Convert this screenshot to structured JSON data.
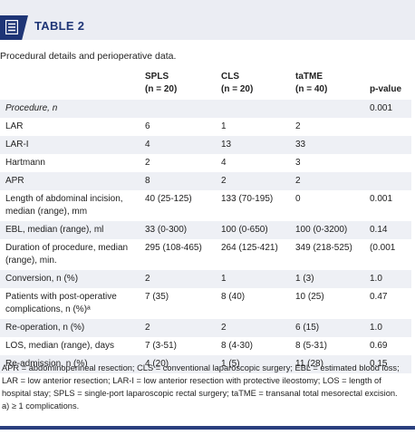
{
  "table_label": "TABLE 2",
  "caption": "Procedural details and perioperative data.",
  "columns": [
    {
      "name": "SPLS",
      "n": "(n = 20)"
    },
    {
      "name": "CLS",
      "n": "(n = 20)"
    },
    {
      "name": "taTME",
      "n": "(n = 40)"
    },
    {
      "name": "p-value",
      "n": ""
    }
  ],
  "rows": [
    {
      "label": "Procedure, n",
      "italic": true,
      "spls": "",
      "cls": "",
      "tatme": "",
      "p": "0.001"
    },
    {
      "label": "LAR",
      "spls": "6",
      "cls": "1",
      "tatme": "2",
      "p": ""
    },
    {
      "label": "LAR-I",
      "spls": "4",
      "cls": "13",
      "tatme": "33",
      "p": ""
    },
    {
      "label": "Hartmann",
      "spls": "2",
      "cls": "4",
      "tatme": "3",
      "p": ""
    },
    {
      "label": "APR",
      "spls": "8",
      "cls": "2",
      "tatme": "2",
      "p": ""
    },
    {
      "label": "Length of abdominal incision, median (range), mm",
      "spls": "40 (25-125)",
      "cls": "133 (70-195)",
      "tatme": "0",
      "p": "0.001"
    },
    {
      "label": "EBL, median (range), ml",
      "spls": "33 (0-300)",
      "cls": "100 (0-650)",
      "tatme": "100 (0-3200)",
      "p": "0.14"
    },
    {
      "label": "Duration of procedure, median (range), min.",
      "spls": "295 (108-465)",
      "cls": "264 (125-421)",
      "tatme": "349 (218-525)",
      "p": "(0.001"
    },
    {
      "label": "Conversion, n (%)",
      "spls": "2",
      "cls": "1",
      "tatme": "1 (3)",
      "p": "1.0"
    },
    {
      "label": "Patients with post-operative complications, n (%)ᵃ",
      "spls": "7 (35)",
      "cls": "8 (40)",
      "tatme": "10 (25)",
      "p": "0.47"
    },
    {
      "label": "Re-operation, n (%)",
      "spls": "2",
      "cls": "2",
      "tatme": "6 (15)",
      "p": "1.0"
    },
    {
      "label": "LOS, median (range), days",
      "spls": "7 (3-51)",
      "cls": "8 (4-30)",
      "tatme": "8 (5-31)",
      "p": "0.69"
    },
    {
      "label": "Re-admission, n (%)",
      "spls": "4 (20)",
      "cls": "1 (5)",
      "tatme": "11 (28)",
      "p": "0.15"
    }
  ],
  "footnote": "APR = abdominoperineal resection; CLS = conventional laparoscopic surgery; EBL = estimated blood loss; LAR = low anterior resection; LAR-I = low anterior resection with protective ileostomy; LOS = length of hospital stay; SPLS = single-port laparoscopic rectal surgery; taTME = transanal total mesorectal excision.",
  "footnote_a": "a) ≥ 1 complications."
}
